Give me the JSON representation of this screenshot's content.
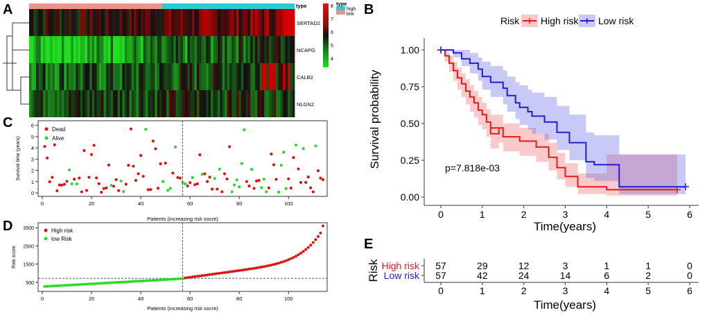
{
  "panel_labels": {
    "a": "A",
    "b": "B",
    "c": "C",
    "d": "D",
    "e": "E"
  },
  "chart_data": [
    {
      "id": "A",
      "type": "heatmap",
      "genes": [
        "SERTAD2",
        "NCAPG",
        "CALB2",
        "NLGN2"
      ],
      "type_legend": {
        "title": "type",
        "labels": [
          "high",
          "low"
        ],
        "colors": [
          "#2ecbd3",
          "#f0938a"
        ]
      },
      "color_scale": {
        "ticks": [
          4,
          5,
          6,
          7,
          8
        ],
        "low_color": "#22dd22",
        "mid_color": "#111111",
        "high_color": "#dd1111"
      },
      "n_patients": 114,
      "group_split": 57
    },
    {
      "id": "B",
      "type": "line",
      "subtype": "kaplan-meier",
      "legend_title": "Risk",
      "series": [
        {
          "name": "High risk",
          "color": "#e31a1c",
          "steps": [
            [
              0,
              1.0
            ],
            [
              0.1,
              0.96
            ],
            [
              0.2,
              0.91
            ],
            [
              0.3,
              0.86
            ],
            [
              0.4,
              0.81
            ],
            [
              0.5,
              0.77
            ],
            [
              0.6,
              0.72
            ],
            [
              0.7,
              0.68
            ],
            [
              0.8,
              0.64
            ],
            [
              0.9,
              0.59
            ],
            [
              1.0,
              0.56
            ],
            [
              1.1,
              0.51
            ],
            [
              1.2,
              0.47
            ],
            [
              1.4,
              0.43
            ],
            [
              1.2,
              0.47
            ],
            [
              1.5,
              0.41
            ],
            [
              1.8,
              0.41
            ],
            [
              1.9,
              0.38
            ],
            [
              2.1,
              0.38
            ],
            [
              2.3,
              0.34
            ],
            [
              2.6,
              0.27
            ],
            [
              2.8,
              0.2
            ],
            [
              3.0,
              0.14
            ],
            [
              3.3,
              0.07
            ],
            [
              3.8,
              0.07
            ],
            [
              3.95,
              0.07
            ],
            [
              4.0,
              0.05
            ],
            [
              5.7,
              0.05
            ]
          ],
          "ci_upper": [
            1.0,
            0.99,
            0.96,
            0.92,
            0.88,
            0.84,
            0.8,
            0.76,
            0.72,
            0.68,
            0.64,
            0.6,
            0.56,
            0.52,
            0.56,
            0.5,
            0.5,
            0.47,
            0.47,
            0.43,
            0.37,
            0.3,
            0.23,
            0.16,
            0.16,
            0.16,
            0.29,
            0.29
          ],
          "ci_lower": [
            1.0,
            0.92,
            0.85,
            0.79,
            0.73,
            0.68,
            0.63,
            0.58,
            0.54,
            0.49,
            0.46,
            0.41,
            0.37,
            0.33,
            0.37,
            0.31,
            0.31,
            0.28,
            0.28,
            0.24,
            0.18,
            0.12,
            0.07,
            0.02,
            0.02,
            0.02,
            0.01,
            0.01
          ]
        },
        {
          "name": "Low risk",
          "color": "#1f1fd1",
          "steps": [
            [
              0,
              1.0
            ],
            [
              0.3,
              0.98
            ],
            [
              0.5,
              0.94
            ],
            [
              0.7,
              0.91
            ],
            [
              0.9,
              0.87
            ],
            [
              1.0,
              0.82
            ],
            [
              1.2,
              0.78
            ],
            [
              1.5,
              0.74
            ],
            [
              1.6,
              0.69
            ],
            [
              1.8,
              0.64
            ],
            [
              1.9,
              0.61
            ],
            [
              2.1,
              0.58
            ],
            [
              2.2,
              0.55
            ],
            [
              2.5,
              0.51
            ],
            [
              2.8,
              0.44
            ],
            [
              3.1,
              0.37
            ],
            [
              3.4,
              0.37
            ],
            [
              3.5,
              0.24
            ],
            [
              3.7,
              0.22
            ],
            [
              4.0,
              0.22
            ],
            [
              4.3,
              0.07
            ],
            [
              5.9,
              0.07
            ]
          ],
          "ci_upper": [
            1.0,
            1.0,
            1.0,
            0.98,
            0.95,
            0.92,
            0.89,
            0.86,
            0.82,
            0.78,
            0.76,
            0.73,
            0.71,
            0.68,
            0.62,
            0.56,
            0.56,
            0.44,
            0.42,
            0.42,
            0.29,
            0.29
          ],
          "ci_lower": [
            1.0,
            0.95,
            0.89,
            0.84,
            0.79,
            0.73,
            0.68,
            0.63,
            0.58,
            0.53,
            0.49,
            0.46,
            0.43,
            0.39,
            0.32,
            0.25,
            0.25,
            0.13,
            0.11,
            0.11,
            0.02,
            0.02
          ]
        }
      ],
      "p_value_text": "p=7.818e-03",
      "xlabel": "Time(years)",
      "ylabel": "Survival probability",
      "xlim": [
        0,
        6
      ],
      "ylim": [
        0,
        1
      ],
      "x_ticks": [
        0,
        1,
        2,
        3,
        4,
        5,
        6
      ],
      "y_ticks": [
        "0.00",
        "0.25",
        "0.50",
        "0.75",
        "1.00"
      ]
    },
    {
      "id": "C",
      "type": "scatter",
      "xlabel": "Patients (increasing risk socre)",
      "ylabel": "Survival time (years)",
      "legend": [
        {
          "name": "Dead",
          "color": "#dd1111"
        },
        {
          "name": "Alive",
          "color": "#22dd22"
        }
      ],
      "x_ticks": [
        0,
        20,
        40,
        60,
        80,
        100
      ],
      "y_ticks": [
        0,
        1,
        2,
        3,
        4,
        5,
        6
      ],
      "ylim": [
        0,
        6.1
      ],
      "cutoff_x": 57
    },
    {
      "id": "D",
      "type": "scatter",
      "xlabel": "Patients (increasing risk socre)",
      "ylabel": "Risk score",
      "legend": [
        {
          "name": "High risk",
          "color": "#dd1111"
        },
        {
          "name": "low Risk",
          "color": "#22dd22"
        }
      ],
      "x_ticks": [
        0,
        20,
        40,
        60,
        80,
        100
      ],
      "y_ticks": [
        500,
        1500,
        2500,
        3500
      ],
      "ylim": [
        150,
        3700
      ],
      "cutoff_x": 57,
      "cutoff_y": 720
    },
    {
      "id": "E",
      "type": "table",
      "title": "Risk",
      "rows": [
        {
          "label": "High risk",
          "color": "#e31a1c",
          "values": [
            57,
            29,
            12,
            3,
            1,
            1,
            0
          ]
        },
        {
          "label": "Low risk",
          "color": "#1f1fd1",
          "values": [
            57,
            42,
            24,
            14,
            6,
            2,
            0
          ]
        }
      ],
      "x_ticks": [
        0,
        1,
        2,
        3,
        4,
        5,
        6
      ],
      "xlabel": "Time(years)"
    }
  ]
}
